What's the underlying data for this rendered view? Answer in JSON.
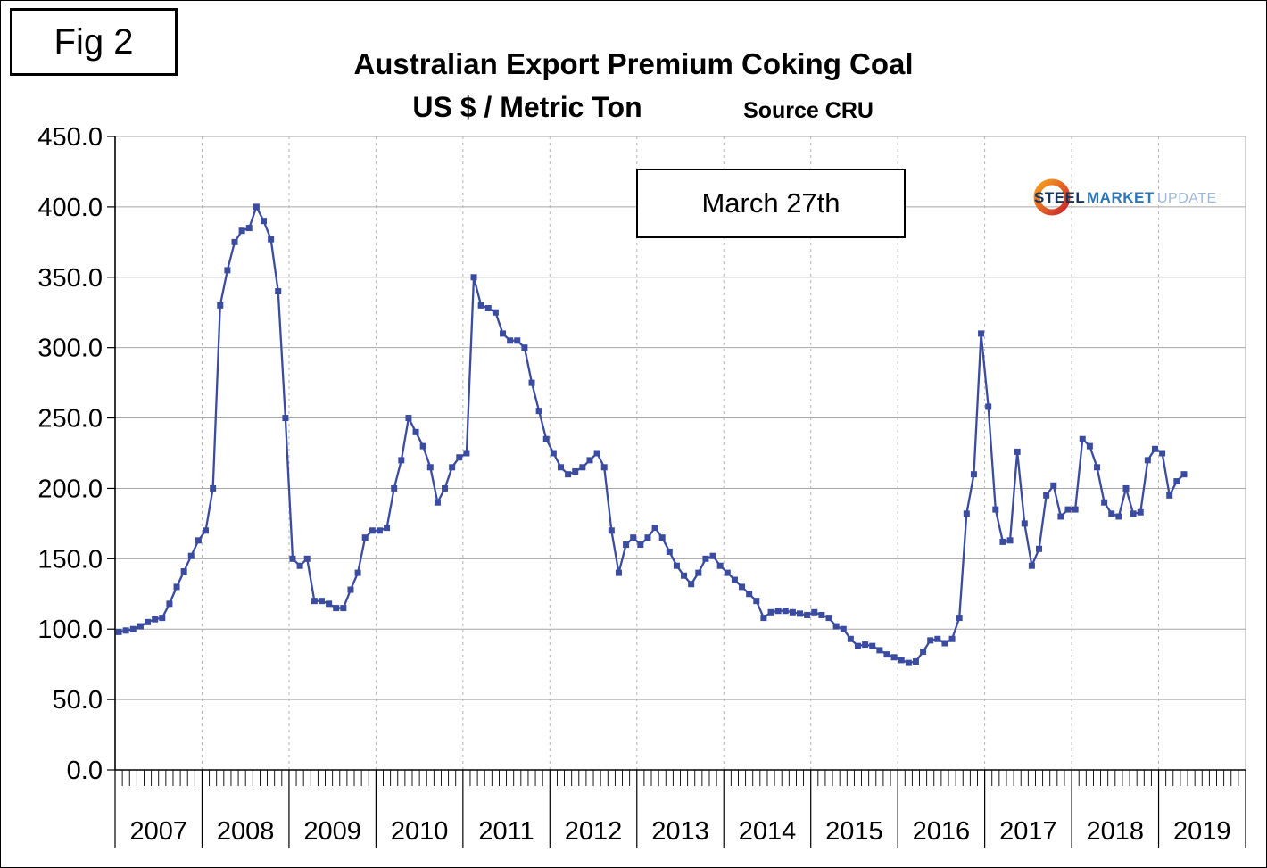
{
  "figure_label": "Fig 2",
  "header": {
    "title": "Australian Export Premium Coking Coal",
    "subtitle": "US $ / Metric Ton",
    "source": "Source CRU"
  },
  "annotation": {
    "label": "March 27th"
  },
  "logo": {
    "steel": "STEEL",
    "market": "MARKET",
    "update": "UPDATE",
    "steel_color": "#17365D",
    "market_color": "#2E75B6",
    "update_color": "#9DB9D9",
    "swoosh_color_start": "#F9A11B",
    "swoosh_color_end": "#C9252C"
  },
  "chart_data": {
    "type": "line",
    "title": "Australian Export Premium Coking Coal",
    "ylabel": "US $ / Metric Ton",
    "source": "Source CRU",
    "grid": {
      "horizontal": true,
      "vertical_dashed_yearly": true
    },
    "legend": "none",
    "y_axis": {
      "min": 0,
      "max": 450,
      "step": 50,
      "tick_labels": [
        "0.0",
        "50.0",
        "100.0",
        "150.0",
        "200.0",
        "250.0",
        "300.0",
        "350.0",
        "400.0",
        "450.0"
      ]
    },
    "x_axis": {
      "start_month": "2007-01",
      "end_month": "2019-04",
      "year_labels": [
        "2007",
        "2008",
        "2009",
        "2010",
        "2011",
        "2012",
        "2013",
        "2014",
        "2015",
        "2016",
        "2017",
        "2018",
        "2019"
      ]
    },
    "series": [
      {
        "name": "Australian Export Premium Coking Coal (US $ / metric ton)",
        "color": "#3B4CA0",
        "marker": "square",
        "values": [
          98,
          99,
          100,
          102,
          105,
          107,
          108,
          118,
          130,
          141,
          152,
          163,
          170,
          200,
          330,
          355,
          375,
          383,
          385,
          400,
          390,
          377,
          340,
          250,
          150,
          145,
          150,
          120,
          120,
          118,
          115,
          115,
          128,
          140,
          165,
          170,
          170,
          172,
          200,
          220,
          250,
          240,
          230,
          215,
          190,
          200,
          215,
          222,
          225,
          350,
          330,
          328,
          325,
          310,
          305,
          305,
          300,
          275,
          255,
          235,
          225,
          215,
          210,
          212,
          215,
          220,
          225,
          215,
          170,
          140,
          160,
          165,
          160,
          165,
          172,
          165,
          155,
          145,
          138,
          132,
          140,
          150,
          152,
          145,
          140,
          135,
          130,
          125,
          120,
          108,
          112,
          113,
          113,
          112,
          111,
          110,
          112,
          110,
          108,
          102,
          100,
          93,
          88,
          89,
          88,
          85,
          82,
          80,
          78,
          76,
          77,
          84,
          92,
          93,
          90,
          93,
          108,
          182,
          210,
          310,
          258,
          185,
          162,
          163,
          226,
          175,
          145,
          157,
          195,
          202,
          180,
          185,
          185,
          235,
          230,
          215,
          190,
          182,
          180,
          200,
          182,
          183,
          220,
          228,
          225,
          195,
          205,
          210
        ]
      }
    ]
  }
}
